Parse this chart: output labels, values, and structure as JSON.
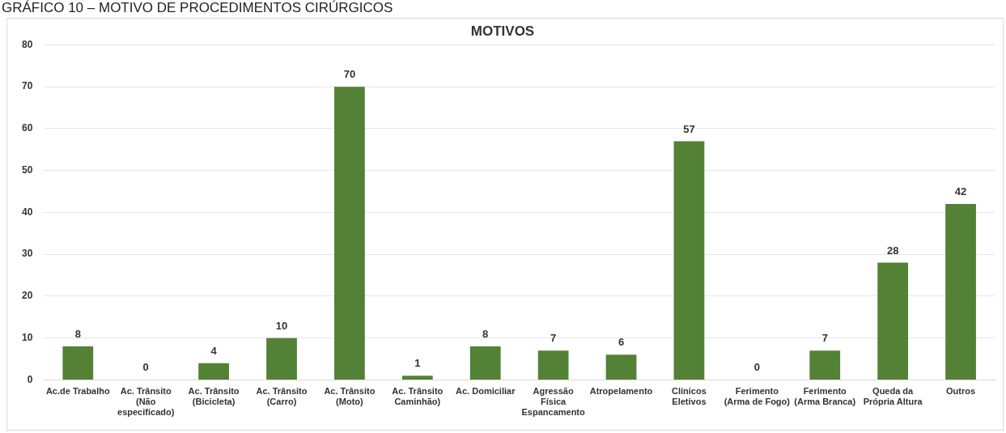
{
  "chart_data": {
    "type": "bar",
    "title": "MOTIVOS",
    "annotations": [
      "GRÁFICO 10 – MOTIVO DE PROCEDIMENTOS CIRÚRGICOS"
    ],
    "categories": [
      "Ac.de Trabalho",
      "Ac. Trânsito (Não especificado)",
      "Ac. Trânsito (Bicicleta)",
      "Ac. Trânsito (Carro)",
      "Ac. Trânsito (Moto)",
      "Ac. Trânsito Caminhão)",
      "Ac. Domiciliar",
      "Agressão Física Espancamento",
      "Atropelamento",
      "Clínicos Eletivos",
      "Ferimento (Arma de Fogo)",
      "Ferimento (Arma Branca)",
      "Queda da Própria Altura",
      "Outros"
    ],
    "values": [
      8,
      0,
      4,
      10,
      70,
      1,
      8,
      7,
      6,
      57,
      0,
      7,
      28,
      42
    ],
    "color": "#538135",
    "ylim": [
      0,
      80
    ],
    "yticks": [
      0,
      10,
      20,
      30,
      40,
      50,
      60,
      70,
      80
    ],
    "grid": "y",
    "legend": false,
    "data_labels": true
  }
}
